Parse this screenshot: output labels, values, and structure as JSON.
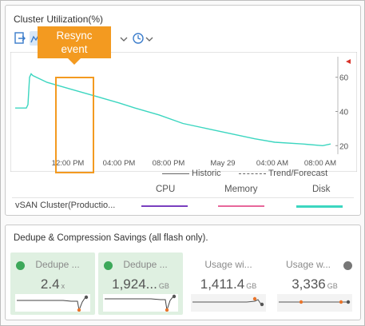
{
  "cluster_card": {
    "title": "Cluster Utilization(%)",
    "callout": [
      "Resync",
      "event"
    ],
    "y_ticks": [
      "60",
      "40",
      "20"
    ],
    "x_ticks": [
      "12:00 PM",
      "04:00 PM",
      "08:00 PM",
      "May 29",
      "04:00 AM",
      "08:00 AM"
    ],
    "legend": {
      "historic": "Historic",
      "trend": "Trend/Forecast"
    },
    "columns": {
      "cpu": "CPU",
      "memory": "Memory",
      "disk": "Disk"
    },
    "row_label": "vSAN Cluster(Productio...",
    "colors": {
      "cpu": "#7a3fbf",
      "memory": "#e8679a",
      "disk": "#3cd6c0",
      "callout": "#f39a20"
    }
  },
  "dedupe_card": {
    "title": "Dedupe & Compression Savings (all flash only).",
    "tiles": [
      {
        "name": "Dedupe ...",
        "value": "2.4",
        "unit": "x",
        "status": "green"
      },
      {
        "name": "Dedupe ...",
        "value": "1,924...",
        "unit": "GB",
        "status": "green"
      },
      {
        "name": "Usage wi...",
        "value": "1,411.4",
        "unit": "GB",
        "status": "gray"
      },
      {
        "name": "Usage w...",
        "value": "3,336",
        "unit": "GB",
        "status": "gray"
      }
    ]
  },
  "chart_data": {
    "type": "line",
    "title": "Cluster Utilization(%)",
    "x_ticks": [
      "12:00 PM",
      "04:00 PM",
      "08:00 PM",
      "May 29",
      "04:00 AM",
      "08:00 AM"
    ],
    "ylim": [
      15,
      72
    ],
    "series": [
      {
        "name": "Disk",
        "color": "#3cd6c0",
        "points": [
          [
            0,
            42
          ],
          [
            14,
            42
          ],
          [
            16,
            44
          ],
          [
            18,
            60
          ],
          [
            20,
            62
          ],
          [
            22,
            61
          ],
          [
            40,
            57
          ],
          [
            70,
            53
          ],
          [
            100,
            49
          ],
          [
            130,
            45
          ],
          [
            150,
            42
          ],
          [
            180,
            38
          ],
          [
            210,
            33
          ],
          [
            240,
            30
          ],
          [
            270,
            27
          ],
          [
            300,
            24
          ],
          [
            325,
            22
          ],
          [
            360,
            21
          ],
          [
            385,
            20
          ],
          [
            395,
            21
          ]
        ]
      }
    ]
  }
}
